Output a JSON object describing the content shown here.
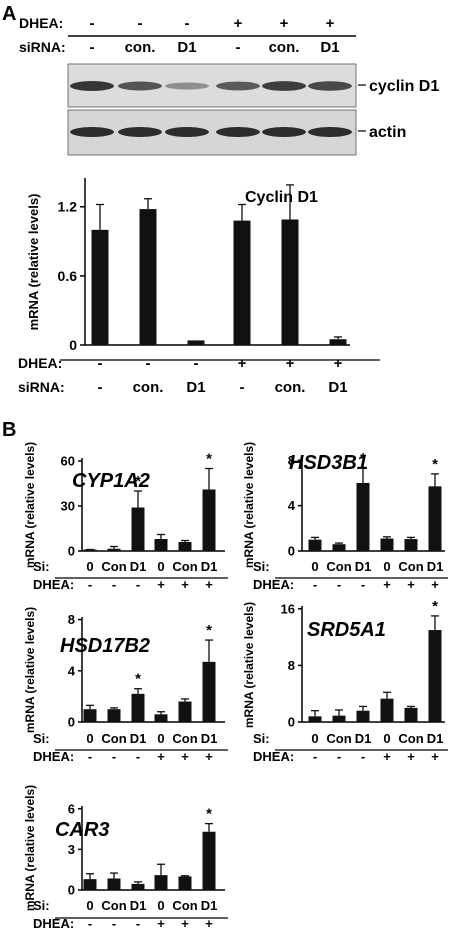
{
  "panel_labels": {
    "a": "A",
    "b": "B"
  },
  "blot": {
    "dhea_label": "DHEA:",
    "sirna_label": "siRNA:",
    "dhea": [
      "-",
      "-",
      "-",
      "+",
      "+",
      "+"
    ],
    "sirna": [
      "-",
      "con.",
      "D1",
      "-",
      "con.",
      "D1"
    ],
    "band_labels": [
      "cyclin D1",
      "actin"
    ]
  },
  "colors": {
    "bar": "#111111",
    "blot_bg": "#dcdcdc",
    "band": "#1a1a1a"
  },
  "chart_data": [
    {
      "type": "bar",
      "title": "Cyclin D1",
      "ylabel": "mRNA (relative levels)",
      "ylim": [
        0,
        1.45
      ],
      "yticks": [
        0,
        0.6,
        1.2
      ],
      "yticklabels": [
        "0",
        "0.6",
        "1.2"
      ],
      "row1_label": "DHEA:",
      "row2_label": "siRNA:",
      "row1": [
        "-",
        "-",
        "-",
        "+",
        "+",
        "+"
      ],
      "row2": [
        "-",
        "con.",
        "D1",
        "-",
        "con.",
        "D1"
      ],
      "values": [
        1.0,
        1.18,
        0.04,
        1.08,
        1.09,
        0.05
      ],
      "errors": [
        0.22,
        0.09,
        0.0,
        0.14,
        0.3,
        0.02
      ],
      "sig": [
        false,
        false,
        false,
        false,
        false,
        false
      ]
    },
    {
      "type": "bar",
      "title": "CYP1A2",
      "ylabel": "mRNA (relative levels)",
      "ylim": [
        0,
        62
      ],
      "yticks": [
        0,
        30,
        60
      ],
      "yticklabels": [
        "0",
        "30",
        "60"
      ],
      "row1_label": "Si:",
      "row2_label": "DHEA:",
      "row1": [
        "0",
        "Con",
        "D1",
        "0",
        "Con",
        "D1"
      ],
      "row2": [
        "-",
        "-",
        "-",
        "+",
        "+",
        "+"
      ],
      "values": [
        0.5,
        1.5,
        29,
        8,
        6,
        41
      ],
      "errors": [
        0.5,
        1.5,
        11,
        3,
        1,
        14
      ],
      "sig": [
        false,
        false,
        true,
        false,
        false,
        true
      ],
      "sig_mark": "*"
    },
    {
      "type": "bar",
      "title": "HSD3B1",
      "ylabel": "mRNA (relative levels)",
      "ylim": [
        0,
        8.2
      ],
      "yticks": [
        0,
        4,
        8
      ],
      "yticklabels": [
        "0",
        "4",
        "8"
      ],
      "row1_label": "Si:",
      "row2_label": "DHEA:",
      "row1": [
        "0",
        "Con",
        "D1",
        "0",
        "Con",
        "D1"
      ],
      "row2": [
        "-",
        "-",
        "-",
        "+",
        "+",
        "+"
      ],
      "values": [
        1.0,
        0.6,
        6.0,
        1.1,
        1.05,
        5.7
      ],
      "errors": [
        0.2,
        0.1,
        1.3,
        0.15,
        0.15,
        1.1
      ],
      "sig": [
        false,
        false,
        true,
        false,
        false,
        true
      ],
      "sig_mark": "*"
    },
    {
      "type": "bar",
      "title": "HSD17B2",
      "ylabel": "mRNA (relative levels)",
      "ylim": [
        0,
        8.2
      ],
      "yticks": [
        0,
        4,
        8
      ],
      "yticklabels": [
        "0",
        "4",
        "8"
      ],
      "row1_label": "Si:",
      "row2_label": "DHEA:",
      "row1": [
        "0",
        "Con",
        "D1",
        "0",
        "Con",
        "D1"
      ],
      "row2": [
        "-",
        "-",
        "-",
        "+",
        "+",
        "+"
      ],
      "values": [
        1.0,
        1.0,
        2.2,
        0.6,
        1.6,
        4.7
      ],
      "errors": [
        0.3,
        0.1,
        0.4,
        0.2,
        0.2,
        1.7
      ],
      "sig": [
        false,
        false,
        true,
        false,
        false,
        true
      ],
      "sig_mark": "*"
    },
    {
      "type": "bar",
      "title": "SRD5A1",
      "ylabel": "mRNA (relative levels)",
      "ylim": [
        0,
        16.4
      ],
      "yticks": [
        0,
        8,
        16
      ],
      "yticklabels": [
        "0",
        "8",
        "16"
      ],
      "row1_label": "Si:",
      "row2_label": "DHEA:",
      "row1": [
        "0",
        "Con",
        "D1",
        "0",
        "Con",
        "D1"
      ],
      "row2": [
        "-",
        "-",
        "-",
        "+",
        "+",
        "+"
      ],
      "values": [
        0.8,
        0.9,
        1.6,
        3.3,
        2.0,
        13
      ],
      "errors": [
        0.8,
        0.8,
        0.6,
        0.9,
        0.2,
        2.0
      ],
      "sig": [
        false,
        false,
        false,
        false,
        false,
        true
      ],
      "sig_mark": "*"
    },
    {
      "type": "bar",
      "title": "CAR3",
      "ylabel": "mRNA (relative levels)",
      "ylim": [
        0,
        6.2
      ],
      "yticks": [
        0,
        3,
        6
      ],
      "yticklabels": [
        "0",
        "3",
        "6"
      ],
      "row1_label": "Si:",
      "row2_label": "DHEA:",
      "row1": [
        "0",
        "Con",
        "D1",
        "0",
        "Con",
        "D1"
      ],
      "row2": [
        "-",
        "-",
        "-",
        "+",
        "+",
        "+"
      ],
      "values": [
        0.8,
        0.85,
        0.45,
        1.1,
        1.0,
        4.3
      ],
      "errors": [
        0.4,
        0.4,
        0.15,
        0.8,
        0.05,
        0.6
      ],
      "sig": [
        false,
        false,
        false,
        false,
        false,
        true
      ],
      "sig_mark": "*"
    }
  ]
}
